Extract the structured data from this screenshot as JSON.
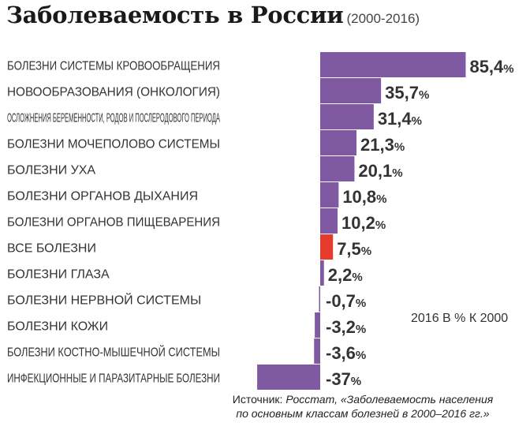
{
  "title": "Заболеваемость в России",
  "subtitle": "(2000-2016)",
  "note": "2016 В % К 2000",
  "source": {
    "label": "Источник:",
    "line1": "Росстат, «Заболеваемость населения",
    "line2": "по основным классам болезней в 2000–2016 гг.»"
  },
  "colors": {
    "bar": "#7f5aa3",
    "highlight": "#e53b2c",
    "highlight_label": "#e53b2c"
  },
  "chart_data": {
    "type": "bar",
    "orientation": "horizontal",
    "title": "Заболеваемость в России",
    "subtitle": "(2000-2016)",
    "unit": "%",
    "categories": [
      "БОЛЕЗНИ СИСТЕМЫ КРОВООБРАЩЕНИЯ",
      "НОВООБРАЗОВАНИЯ (ОНКОЛОГИЯ)",
      "ОСЛОЖНЕНИЯ БЕРЕМЕННОСТИ, РОДОВ И ПОСЛЕРОДОВОГО ПЕРИОДА",
      "БОЛЕЗНИ МОЧЕПОЛОВО СИСТЕМЫ",
      "БОЛЕЗНИ УХА",
      "БОЛЕЗНИ ОРГАНОВ ДЫХАНИЯ",
      "БОЛЕЗНИ ОРГАНОВ ПИЩЕВАРЕНИЯ",
      "ВСЕ БОЛЕЗНИ",
      "БОЛЕЗНИ ГЛАЗА",
      "БОЛЕЗНИ НЕРВНОЙ СИСТЕМЫ",
      "БОЛЕЗНИ КОЖИ",
      "БОЛЕЗНИ КОСТНО-МЫШЕЧНОЙ СИСТЕМЫ",
      "ИНФЕКЦИОННЫЕ И ПАРАЗИТАРНЫЕ БОЛЕЗНИ"
    ],
    "values": [
      85.4,
      35.7,
      31.4,
      21.3,
      20.1,
      10.8,
      10.2,
      7.5,
      2.2,
      -0.7,
      -3.2,
      -3.6,
      -37
    ],
    "value_labels": [
      "85,4",
      "35,7",
      "31,4",
      "21,3",
      "20,1",
      "10,8",
      "10,2",
      "7,5",
      "2,2",
      "-0,7",
      "-3,2",
      "-3,6",
      "-37"
    ],
    "highlight_index": 7,
    "axis_note": "2016 В % К 2000",
    "grid": false
  }
}
